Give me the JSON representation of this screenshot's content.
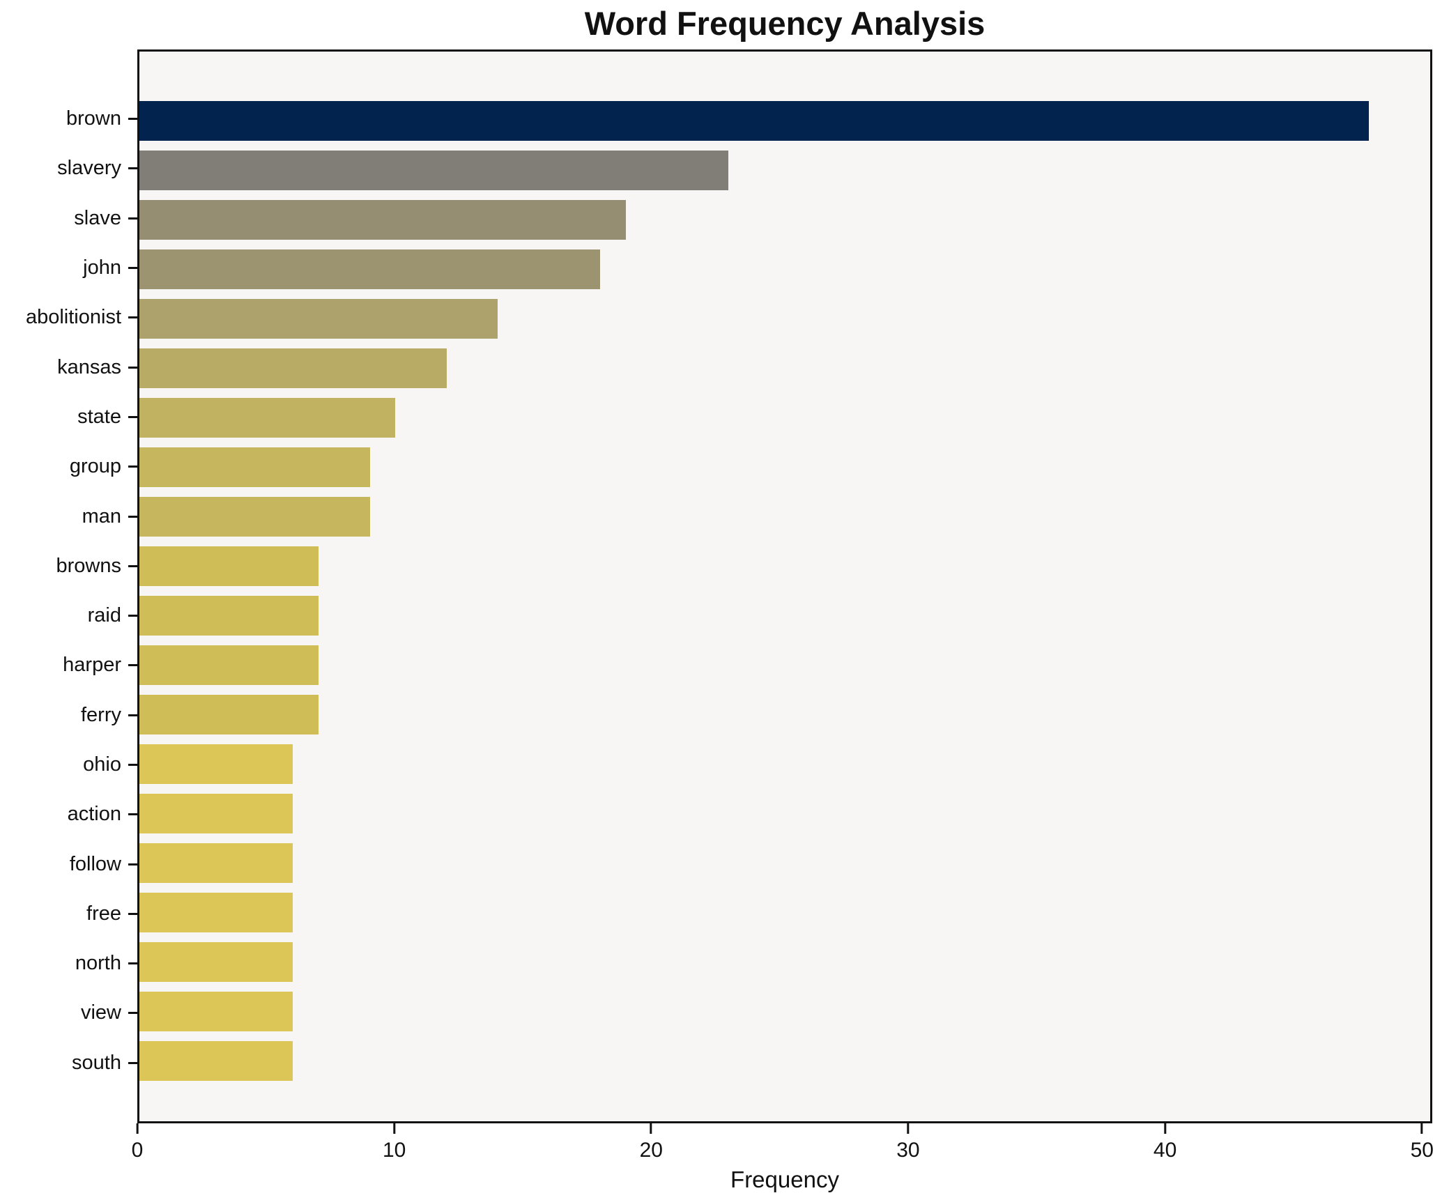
{
  "figure": {
    "background": "#ffffff",
    "plot_background": "#f7f6f4",
    "spine_color": "#111111",
    "tick_color": "#111111"
  },
  "chart_data": {
    "type": "bar",
    "orientation": "horizontal",
    "title": "Word Frequency Analysis",
    "xlabel": "Frequency",
    "ylabel": "",
    "categories": [
      "brown",
      "slavery",
      "slave",
      "john",
      "abolitionist",
      "kansas",
      "state",
      "group",
      "man",
      "browns",
      "raid",
      "harper",
      "ferry",
      "ohio",
      "action",
      "follow",
      "free",
      "north",
      "view",
      "south"
    ],
    "values": [
      48,
      23,
      19,
      18,
      14,
      12,
      10,
      9,
      9,
      7,
      7,
      7,
      7,
      6,
      6,
      6,
      6,
      6,
      6,
      6
    ],
    "bar_colors": [
      "#02234e",
      "#817e77",
      "#958e73",
      "#9c9471",
      "#ada26c",
      "#b7ab66",
      "#c0b261",
      "#c6b65e",
      "#c6b65e",
      "#cfbe57",
      "#cfbe57",
      "#cfbe57",
      "#cfbe57",
      "#dcc658",
      "#dcc658",
      "#dcc658",
      "#dcc658",
      "#dcc658",
      "#dcc658",
      "#dcc658"
    ],
    "xlim": [
      0,
      50.4
    ],
    "x_ticks": [
      0,
      10,
      20,
      30,
      40,
      50
    ],
    "grid": false,
    "legend": false
  }
}
